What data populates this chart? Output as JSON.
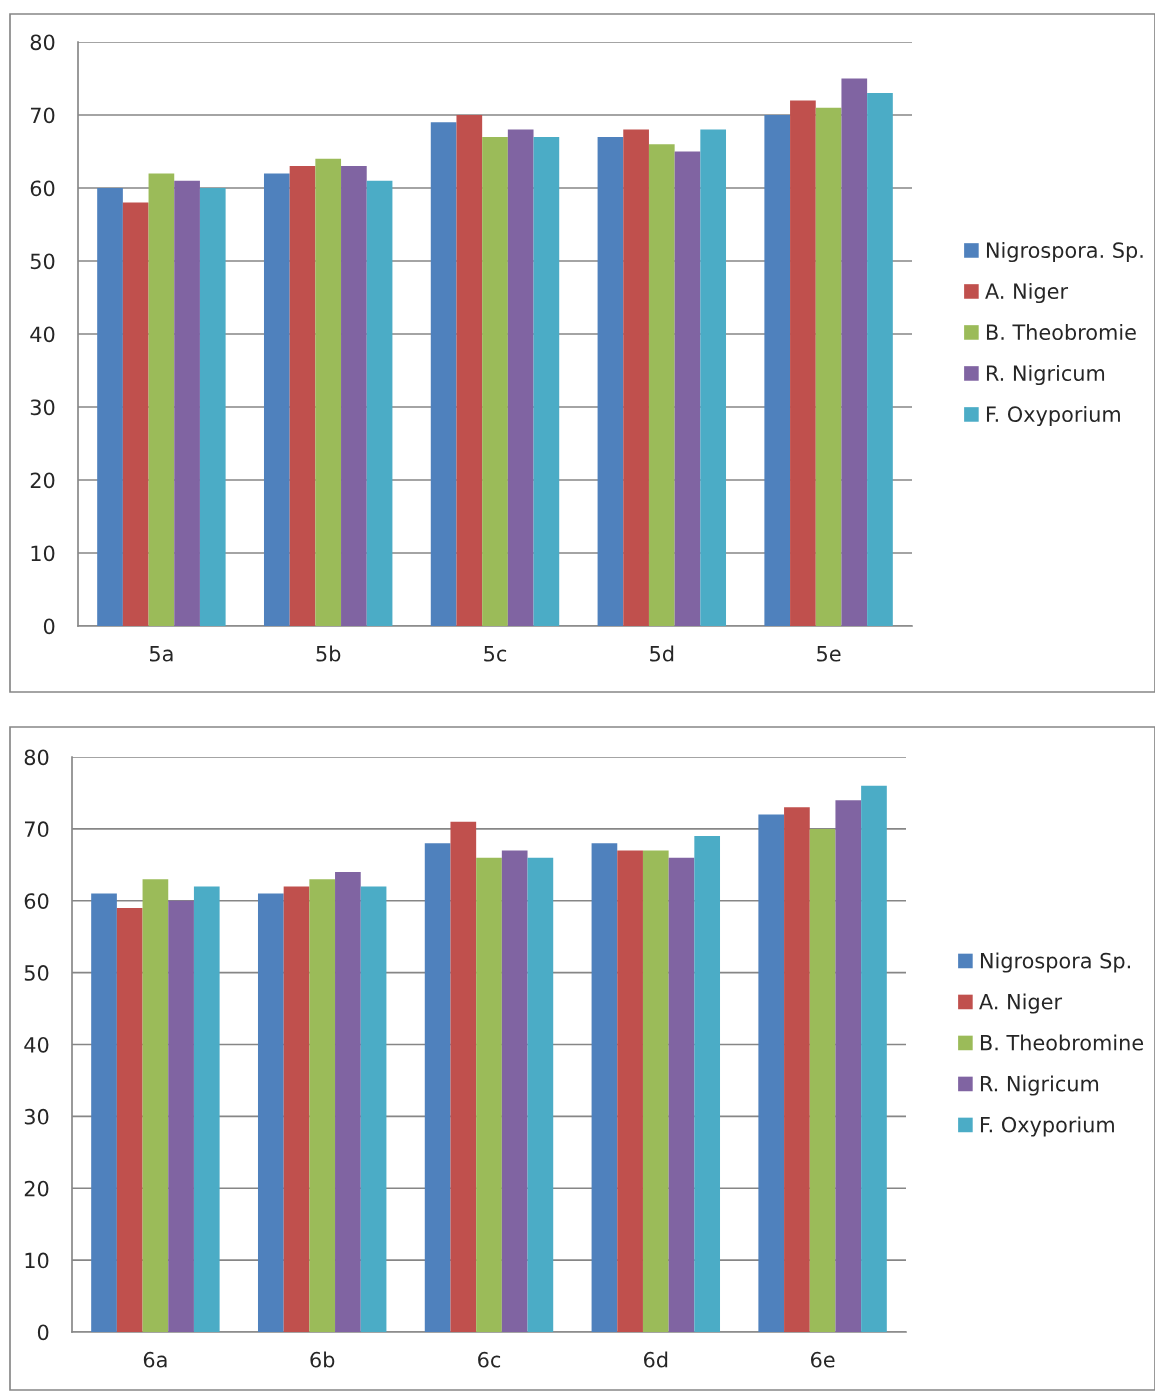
{
  "chart_data": [
    {
      "type": "bar",
      "categories": [
        "5a",
        "5b",
        "5c",
        "5d",
        "5e"
      ],
      "ylim": [
        0,
        80
      ],
      "yticks": [
        0,
        10,
        20,
        30,
        40,
        50,
        60,
        70,
        80
      ],
      "grid": "y",
      "legend": "right",
      "series": [
        {
          "name": "Nigrospora. Sp.",
          "color": "#4f81bd",
          "values": [
            60,
            62,
            69,
            67,
            70
          ]
        },
        {
          "name": "A. Niger",
          "color": "#c0504d",
          "values": [
            58,
            63,
            70,
            68,
            72
          ]
        },
        {
          "name": "B. Theobromie",
          "color": "#9bbb59",
          "values": [
            62,
            64,
            67,
            66,
            71
          ]
        },
        {
          "name": "R. Nigricum",
          "color": "#8064a2",
          "values": [
            61,
            63,
            68,
            65,
            75
          ]
        },
        {
          "name": "F. Oxyporium",
          "color": "#4bacc6",
          "values": [
            60,
            61,
            67,
            68,
            73
          ]
        }
      ]
    },
    {
      "type": "bar",
      "categories": [
        "6a",
        "6b",
        "6c",
        "6d",
        "6e"
      ],
      "ylim": [
        0,
        80
      ],
      "yticks": [
        0,
        10,
        20,
        30,
        40,
        50,
        60,
        70,
        80
      ],
      "grid": "y",
      "legend": "right",
      "series": [
        {
          "name": "Nigrospora Sp.",
          "color": "#4f81bd",
          "values": [
            61,
            61,
            68,
            68,
            72
          ]
        },
        {
          "name": "A. Niger",
          "color": "#c0504d",
          "values": [
            59,
            62,
            71,
            67,
            73
          ]
        },
        {
          "name": "B. Theobromine",
          "color": "#9bbb59",
          "values": [
            63,
            63,
            66,
            67,
            70
          ]
        },
        {
          "name": "R. Nigricum",
          "color": "#8064a2",
          "values": [
            60,
            64,
            67,
            66,
            74
          ]
        },
        {
          "name": "F. Oxyporium",
          "color": "#4bacc6",
          "values": [
            62,
            62,
            66,
            69,
            76
          ]
        }
      ]
    }
  ]
}
